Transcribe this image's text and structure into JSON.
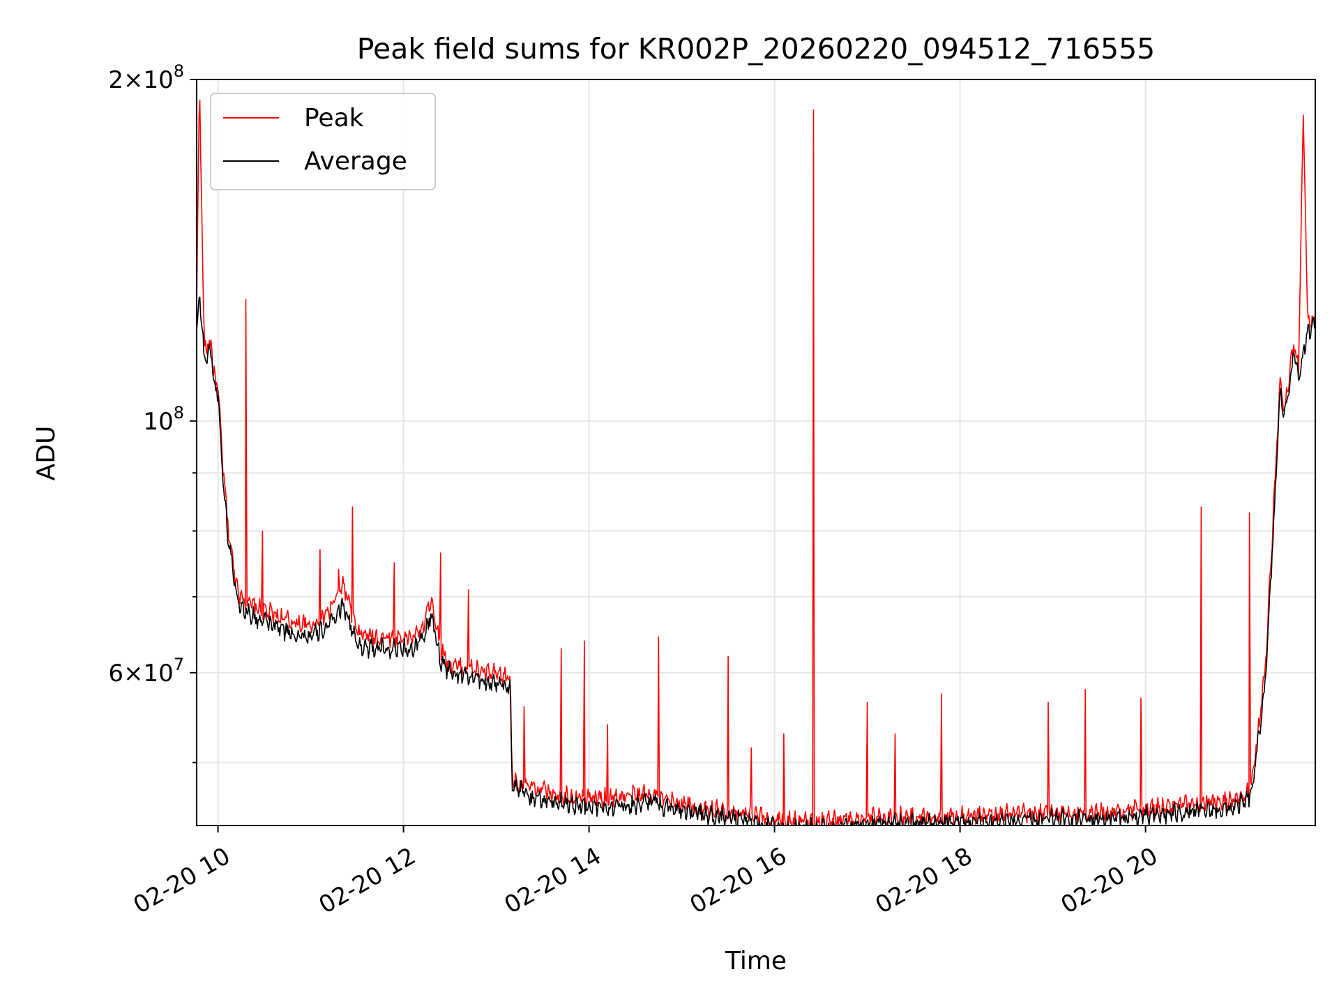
{
  "chart_data": {
    "type": "line",
    "title": "Peak field sums for KR002P_20260220_094512_716555",
    "xlabel": "Time",
    "ylabel": "ADU",
    "yscale": "log",
    "grid": true,
    "legend_position": "top-left",
    "xlim_hours": [
      9.77,
      21.83
    ],
    "ylim": [
      44000000,
      200000000
    ],
    "x_ticks": [
      {
        "label": "02-20 10",
        "hour": 10
      },
      {
        "label": "02-20 12",
        "hour": 12
      },
      {
        "label": "02-20 14",
        "hour": 14
      },
      {
        "label": "02-20 16",
        "hour": 16
      },
      {
        "label": "02-20 18",
        "hour": 18
      },
      {
        "label": "02-20 20",
        "hour": 20
      }
    ],
    "y_ticks": [
      {
        "mantissa": "2",
        "exponent": "8",
        "value": 200000000
      },
      {
        "mantissa": "",
        "exponent": "8",
        "value": 100000000
      },
      {
        "mantissa": "6",
        "exponent": "7",
        "value": 60000000
      }
    ],
    "y_minor_ticks": [
      50000000,
      70000000,
      80000000,
      90000000
    ],
    "series": [
      {
        "name": "Peak",
        "color": "#ff0000",
        "hours": [
          9.77,
          9.8,
          9.85,
          9.9,
          9.93,
          9.95,
          10.0,
          10.05,
          10.1,
          10.15,
          10.2,
          10.25,
          10.3,
          10.4,
          10.6,
          10.8,
          11.0,
          11.2,
          11.35,
          11.5,
          11.7,
          11.9,
          12.1,
          12.2,
          12.3,
          12.4,
          12.5,
          12.7,
          12.9,
          13.1,
          13.15,
          13.17,
          13.2,
          13.4,
          13.6,
          13.8,
          14.0,
          14.2,
          14.5,
          14.7,
          14.8,
          15.0,
          15.2,
          15.5,
          15.7,
          15.9,
          16.0,
          16.2,
          16.4,
          16.6,
          16.8,
          17.0,
          17.5,
          18.0,
          18.5,
          19.0,
          19.5,
          20.0,
          20.3,
          20.6,
          20.9,
          21.0,
          21.1,
          21.15,
          21.2,
          21.3,
          21.4,
          21.45,
          21.5,
          21.55,
          21.6,
          21.65,
          21.7,
          21.75,
          21.8,
          21.83
        ],
        "values": [
          125000000,
          200000000,
          117000000,
          116000000,
          118000000,
          110000000,
          107000000,
          92000000,
          82000000,
          76000000,
          72000000,
          70000000,
          69500000,
          68500000,
          67500000,
          66500000,
          66000000,
          68000000,
          72000000,
          65000000,
          64500000,
          64500000,
          64500000,
          65500000,
          70000000,
          63000000,
          61000000,
          60500000,
          60000000,
          59500000,
          59500000,
          49000000,
          48000000,
          47500000,
          47000000,
          46800000,
          46500000,
          46500000,
          46800000,
          47000000,
          46300000,
          46000000,
          45500000,
          45200000,
          45000000,
          44700000,
          44500000,
          44400000,
          44400000,
          44500000,
          44600000,
          44700000,
          44800000,
          44900000,
          45000000,
          45100000,
          45200000,
          45500000,
          45800000,
          46000000,
          46200000,
          46500000,
          47000000,
          48000000,
          52000000,
          62000000,
          90000000,
          108000000,
          103000000,
          110000000,
          117000000,
          111000000,
          188000000,
          121000000,
          123000000,
          124000000
        ],
        "spikes": [
          {
            "hour": 10.3,
            "value": 128000000
          },
          {
            "hour": 10.48,
            "value": 80000000
          },
          {
            "hour": 11.1,
            "value": 77000000
          },
          {
            "hour": 11.3,
            "value": 74000000
          },
          {
            "hour": 11.45,
            "value": 84000000
          },
          {
            "hour": 11.9,
            "value": 75000000
          },
          {
            "hour": 12.4,
            "value": 76500000
          },
          {
            "hour": 12.7,
            "value": 71000000
          },
          {
            "hour": 13.3,
            "value": 56000000
          },
          {
            "hour": 13.7,
            "value": 63000000
          },
          {
            "hour": 13.95,
            "value": 64000000
          },
          {
            "hour": 14.2,
            "value": 54000000
          },
          {
            "hour": 14.75,
            "value": 64500000
          },
          {
            "hour": 15.5,
            "value": 62000000
          },
          {
            "hour": 15.75,
            "value": 51500000
          },
          {
            "hour": 16.1,
            "value": 53000000
          },
          {
            "hour": 16.42,
            "value": 188000000
          },
          {
            "hour": 17.0,
            "value": 56500000
          },
          {
            "hour": 17.3,
            "value": 53000000
          },
          {
            "hour": 17.8,
            "value": 57500000
          },
          {
            "hour": 18.95,
            "value": 56500000
          },
          {
            "hour": 19.35,
            "value": 58000000
          },
          {
            "hour": 19.95,
            "value": 57000000
          },
          {
            "hour": 20.6,
            "value": 84000000
          },
          {
            "hour": 21.12,
            "value": 83000000
          }
        ]
      },
      {
        "name": "Average",
        "color": "#000000",
        "hours": [
          9.77,
          9.8,
          9.85,
          9.9,
          9.93,
          9.95,
          10.0,
          10.05,
          10.1,
          10.15,
          10.2,
          10.25,
          10.3,
          10.4,
          10.6,
          10.8,
          11.0,
          11.2,
          11.35,
          11.5,
          11.7,
          11.9,
          12.1,
          12.2,
          12.3,
          12.4,
          12.5,
          12.7,
          12.9,
          13.1,
          13.15,
          13.17,
          13.2,
          13.4,
          13.6,
          13.8,
          14.0,
          14.2,
          14.5,
          14.7,
          14.8,
          15.0,
          15.2,
          15.5,
          15.7,
          15.9,
          16.0,
          16.2,
          16.4,
          16.6,
          16.8,
          17.0,
          17.5,
          18.0,
          18.5,
          19.0,
          19.5,
          20.0,
          20.3,
          20.6,
          20.9,
          21.0,
          21.1,
          21.15,
          21.2,
          21.3,
          21.4,
          21.45,
          21.5,
          21.55,
          21.6,
          21.65,
          21.7,
          21.75,
          21.8,
          21.83
        ],
        "values": [
          120000000,
          130000000,
          114000000,
          114000000,
          116000000,
          108000000,
          106000000,
          90000000,
          80000000,
          75000000,
          70500000,
          68500000,
          68000000,
          67000000,
          66000000,
          65000000,
          64500000,
          66000000,
          69000000,
          63500000,
          63000000,
          63000000,
          63000000,
          64000000,
          67500000,
          61500000,
          60000000,
          59500000,
          59000000,
          58500000,
          58500000,
          48000000,
          47500000,
          46500000,
          46200000,
          46000000,
          45800000,
          45700000,
          46000000,
          46200000,
          45800000,
          45500000,
          45000000,
          44700000,
          44400000,
          44100000,
          43900000,
          43800000,
          43800000,
          43900000,
          44000000,
          44100000,
          44200000,
          44300000,
          44400000,
          44500000,
          44600000,
          44800000,
          45100000,
          45300000,
          45500000,
          45800000,
          46300000,
          47300000,
          51000000,
          60000000,
          87000000,
          106000000,
          101000000,
          108000000,
          115000000,
          109000000,
          115000000,
          119000000,
          121000000,
          122000000
        ]
      }
    ]
  }
}
